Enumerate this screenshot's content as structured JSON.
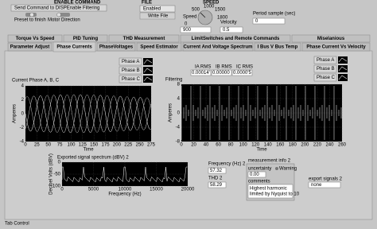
{
  "enable_command": {
    "label": "ENABLE COMMAND",
    "caption": "Send Command to DISPEnable Filtering",
    "switches": [
      "Preset to finish",
      "Motor Direction"
    ]
  },
  "file": {
    "label": "FILE",
    "status": "Enabled",
    "button": "Write File"
  },
  "speed": {
    "label": "SPEED",
    "knob_label": "Speed",
    "knob_ticks": [
      "0",
      "500",
      "1000",
      "1500",
      "1800"
    ],
    "input": "900",
    "velocity_label": "Velocity",
    "velocity": "0.5"
  },
  "period": {
    "label": "Period sample (sec)",
    "value": "0"
  },
  "tabs": {
    "row1": [
      "Torque Vs Speed",
      "PID Tuning",
      "THD Measurement",
      "LimitSwitches and Remote Commands",
      "Miselanious"
    ],
    "row2": [
      "Parameter Adjust",
      "Phase Currents",
      "PhaseVoltages",
      "Speed Estimator",
      "Current And Voltage Spectrum",
      "I Bus V Bus Temp",
      "Phase Current Vs Velocity"
    ]
  },
  "left_graph": {
    "title": "Current Phase A, B, C",
    "legend": [
      "Phase A",
      "Phase B",
      "Phase C"
    ],
    "y_label": "Amperes",
    "y_ticks": [
      "4",
      "2",
      "0",
      "-2",
      "-4"
    ],
    "x_ticks": [
      "0",
      "25",
      "50",
      "75",
      "100",
      "125",
      "150",
      "175",
      "200",
      "225",
      "250",
      "275"
    ],
    "x_label": "Time"
  },
  "rms": {
    "labels": [
      "IA RMS",
      "IB RMS",
      "IC RMS"
    ],
    "values": [
      "0.00014'",
      "0.00000",
      "0.0000'5"
    ]
  },
  "right_graph": {
    "title": "Filtering",
    "legend": [
      "Phase A",
      "Phase B",
      "Phase C"
    ],
    "y_label": "Amperes",
    "y_ticks": [
      "8",
      "4",
      "0",
      "-4",
      "-8"
    ],
    "x_ticks": [
      "0",
      "20",
      "40",
      "60",
      "80",
      "100",
      "120",
      "140",
      "160",
      "180",
      "200",
      "220",
      "240",
      "260"
    ],
    "x_label": "Time"
  },
  "spectrum": {
    "title": "Exported signal spectrum (dBV) 2",
    "y_label": "Decibel Volts (dBV)",
    "y_ticks": [
      "0",
      "-50",
      "-100"
    ],
    "x_ticks": [
      "0",
      "5000",
      "10000",
      "15000",
      "20000"
    ],
    "x_label": "Frequency (Hz)"
  },
  "frequency": {
    "label": "Frequency (Hz) 2",
    "value": "57.32"
  },
  "thd": {
    "label": "THD 2",
    "value": "58.29"
  },
  "measurement_info": {
    "label": "measurement info 2",
    "uncertainty": "uncertainty",
    "warning": "Warning",
    "value": "0.00",
    "comments": "comments",
    "comment_text": [
      "Highest harmonic",
      "limited by Nyquist to 10"
    ]
  },
  "export": {
    "label": "export signals 2",
    "value": "none"
  },
  "footer": "Tab Control"
}
